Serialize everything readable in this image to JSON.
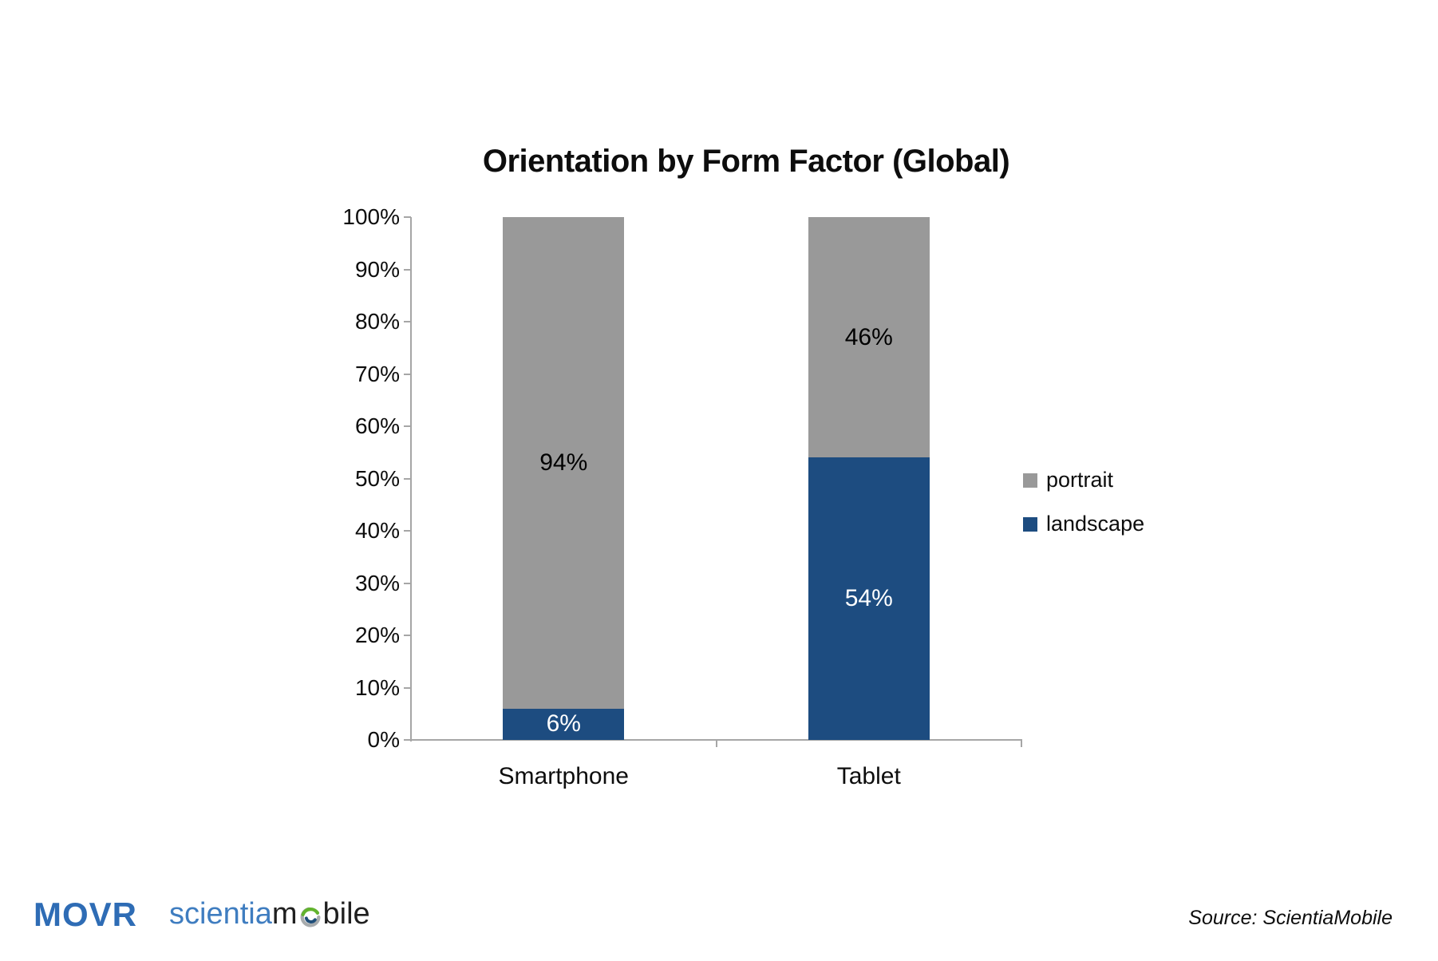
{
  "chart_data": {
    "type": "bar",
    "stacked": true,
    "title": "Orientation by Form Factor (Global)",
    "categories": [
      "Smartphone",
      "Tablet"
    ],
    "series": [
      {
        "name": "landscape",
        "color": "#1D4C80",
        "text_color": "#FFFFFF",
        "values": [
          6,
          54
        ]
      },
      {
        "name": "portrait",
        "color": "#999999",
        "text_color": "#000000",
        "values": [
          94,
          46
        ]
      }
    ],
    "value_suffix": "%",
    "ylim": [
      0,
      100
    ],
    "y_tick_labels": [
      "0%",
      "10%",
      "20%",
      "30%",
      "40%",
      "50%",
      "60%",
      "70%",
      "80%",
      "90%",
      "100%"
    ],
    "legend": [
      "portrait",
      "landscape"
    ],
    "legend_position": "right",
    "grid": false
  },
  "footer": {
    "movr": "MOVR",
    "scientia_blue_part": "scientia",
    "scientia_m": "m",
    "scientia_suffix": "bile",
    "source": "Source: ScientiaMobile"
  },
  "colors": {
    "bar_portrait": "#999999",
    "bar_landscape": "#1D4C80",
    "axis": "#A6A6A6",
    "movr_blue": "#2E6CB5",
    "scientia_blue": "#3F7DC0",
    "logo_dark": "#1F1F1F",
    "globe_green": "#62B32E",
    "globe_gray": "#A7ABAD",
    "globe_blue": "#1F4E79"
  }
}
